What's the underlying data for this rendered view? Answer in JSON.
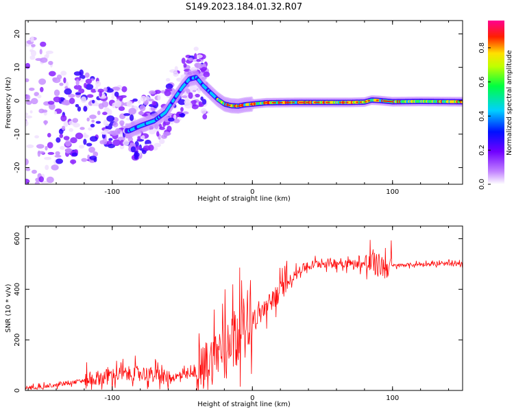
{
  "figure": {
    "title": "S149.2023.184.01.32.R07"
  },
  "chart_data": [
    {
      "type": "heatmap",
      "title": "S149.2023.184.01.32.R07",
      "xlabel": "Height of straight line (km)",
      "ylabel": "Frequency (Hz)",
      "xlim": [
        -162,
        150
      ],
      "ylim": [
        -25,
        24
      ],
      "x_ticks": [
        "-100",
        "0",
        "100"
      ],
      "y_ticks": [
        "-20",
        "-10",
        "0",
        "10",
        "20"
      ],
      "colorbar": {
        "label": "Normalized spectral amplitude",
        "range": [
          0,
          0.96
        ],
        "ticks": [
          "0.0",
          "0.2",
          "0.4",
          "0.6",
          "0.8"
        ],
        "colors": [
          "#ffffff",
          "#8a00ff",
          "#0000ff",
          "#00ffff",
          "#00ff00",
          "#ffff00",
          "#ff0000",
          "#ff0090"
        ]
      },
      "ridge": {
        "x": [
          -88,
          -80,
          -70,
          -62,
          -55,
          -50,
          -45,
          -40,
          -35,
          -30,
          -25,
          -20,
          -15,
          -10,
          -5,
          0,
          10,
          30,
          50,
          70,
          80,
          85,
          90,
          100,
          120,
          150
        ],
        "y": [
          -9,
          -7.5,
          -6,
          -3.5,
          1,
          4,
          6.5,
          7,
          4.5,
          2.5,
          0.5,
          -1,
          -1.5,
          -1.6,
          -1.2,
          -1,
          -0.6,
          -0.5,
          -0.5,
          -0.5,
          -0.4,
          0.2,
          0.1,
          -0.3,
          -0.2,
          -0.3
        ]
      }
    },
    {
      "type": "line",
      "xlabel": "Height of straight line (km)",
      "ylabel": "SNR (10 * v/v)",
      "xlim": [
        -162,
        150
      ],
      "ylim": [
        0,
        650
      ],
      "x_ticks": [
        "-100",
        "0",
        "100"
      ],
      "y_ticks": [
        "0",
        "200",
        "400",
        "600"
      ],
      "color": "#ff0000",
      "envelope": {
        "x": [
          -162,
          -140,
          -120,
          -100,
          -80,
          -60,
          -45,
          -35,
          -25,
          -15,
          -5,
          5,
          15,
          25,
          35,
          45,
          55,
          65,
          75,
          85,
          95,
          105,
          125,
          150
        ],
        "y": [
          10,
          20,
          40,
          60,
          70,
          50,
          60,
          80,
          150,
          220,
          270,
          300,
          360,
          430,
          480,
          500,
          505,
          505,
          500,
          500,
          490,
          495,
          500,
          500
        ]
      }
    }
  ]
}
